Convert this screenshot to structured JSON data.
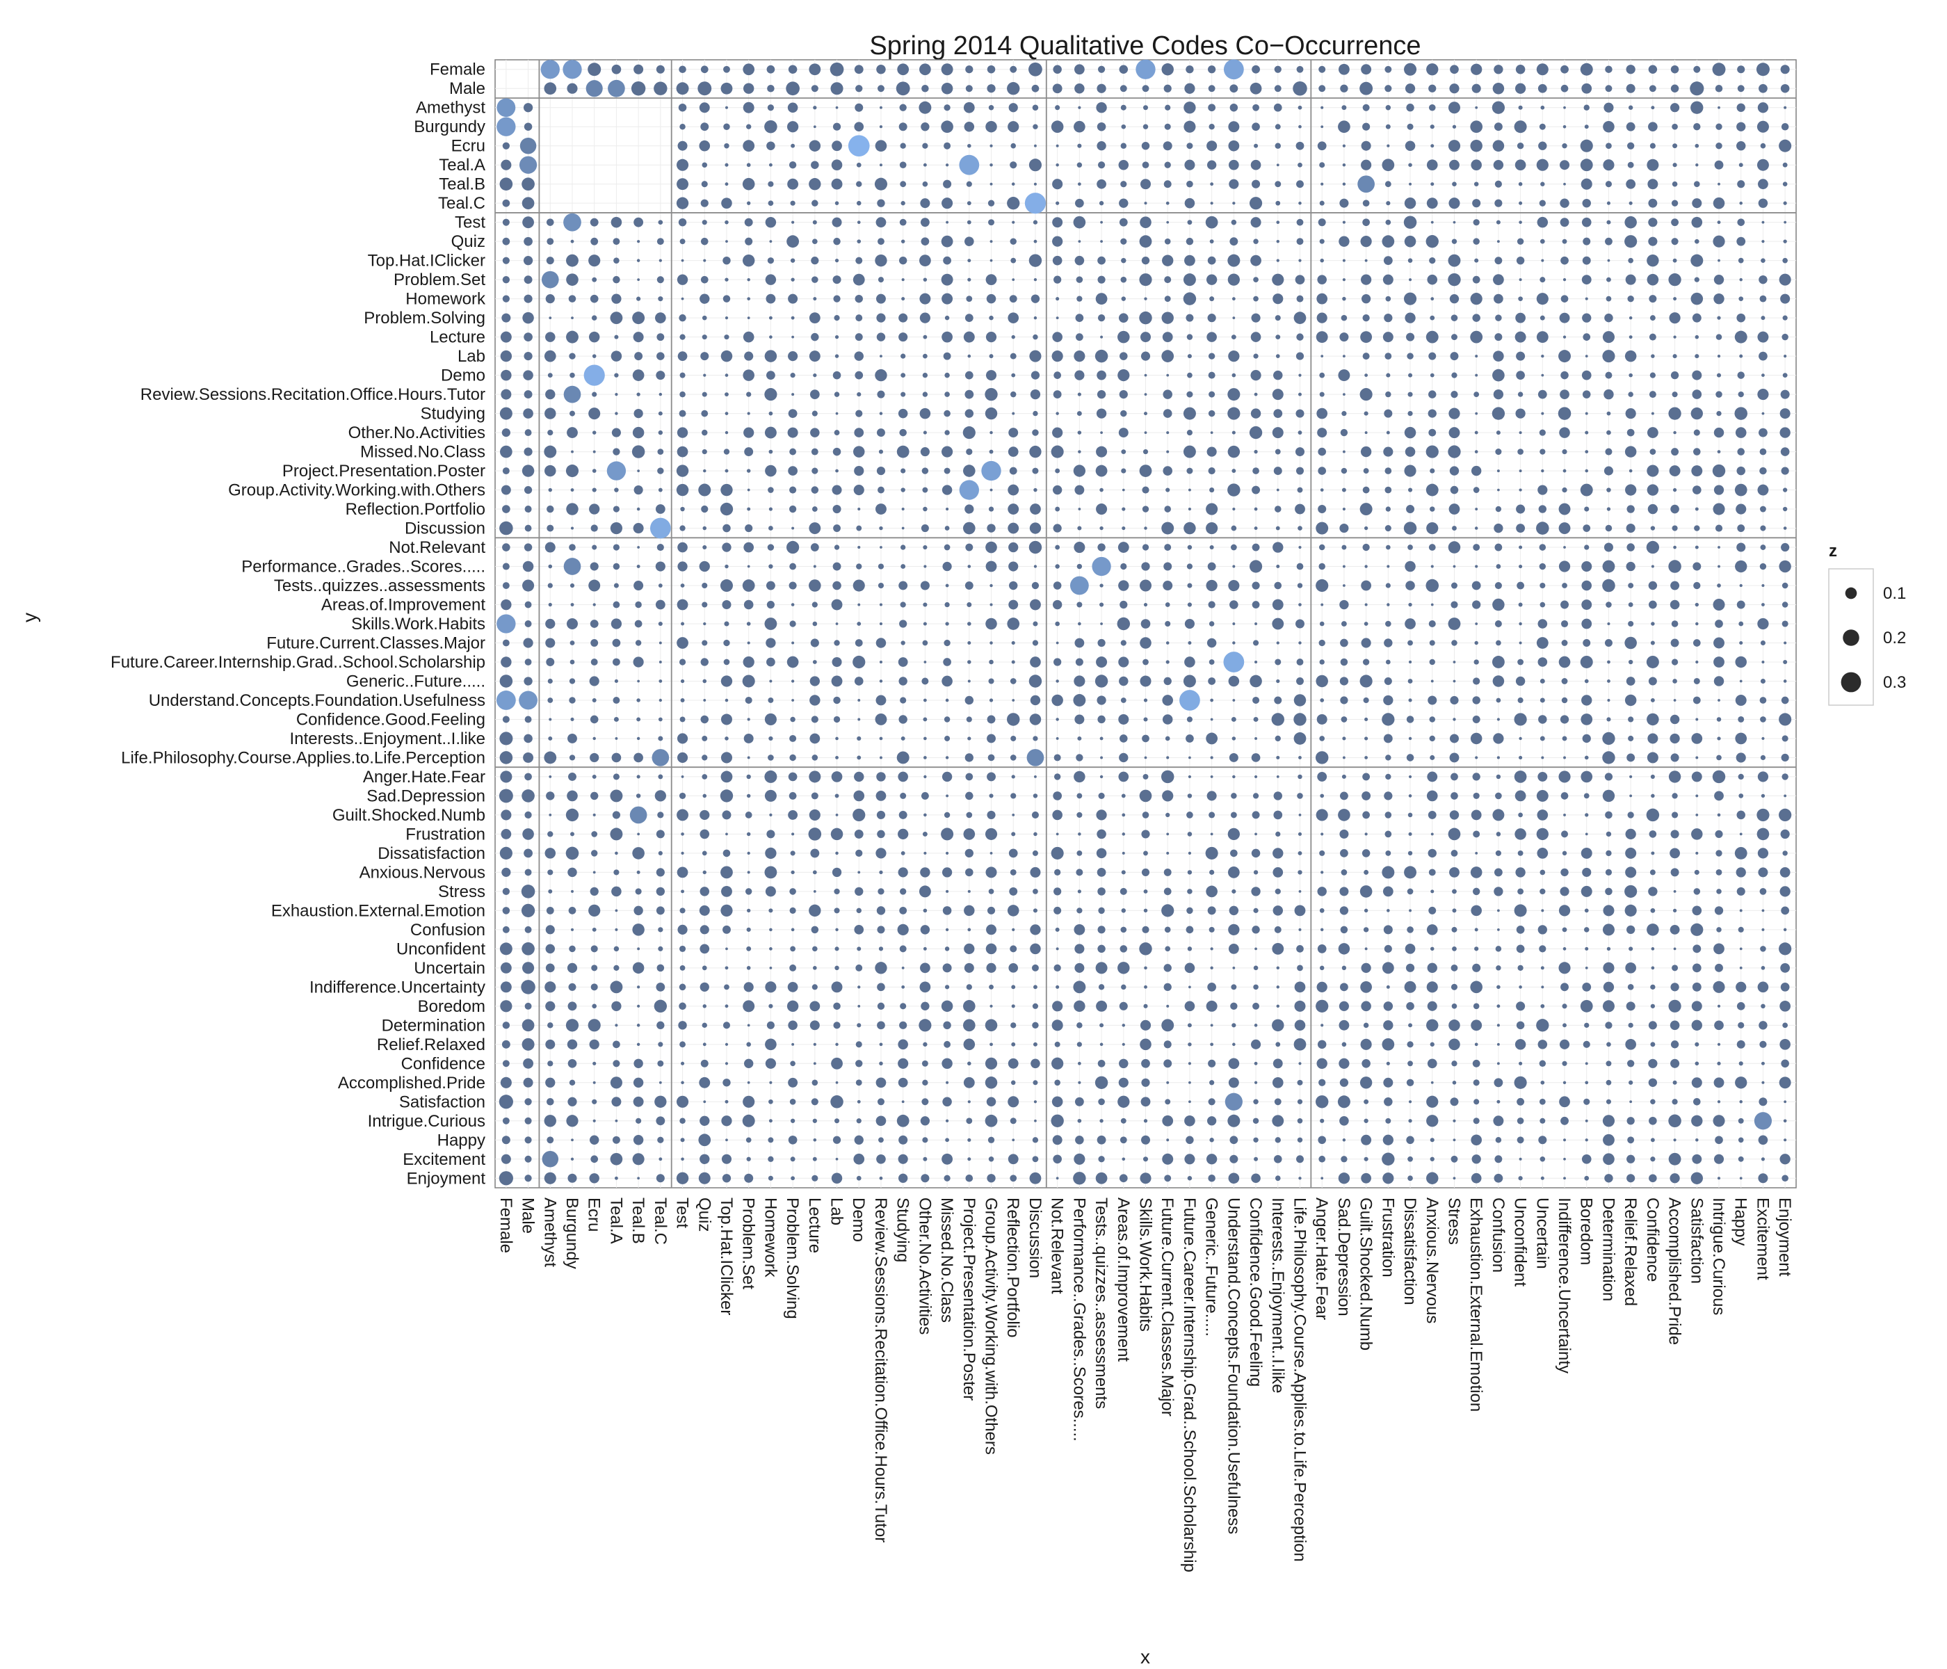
{
  "chart_data": {
    "type": "scatter",
    "subtype": "bubble-matrix",
    "title": "Spring 2014 Qualitative Codes Co−Occurrence",
    "xlabel": "x",
    "ylabel": "y",
    "codes": [
      "Female",
      "Male",
      "Amethyst",
      "Burgundy",
      "Ecru",
      "Teal.A",
      "Teal.B",
      "Teal.C",
      "Test",
      "Quiz",
      "Top.Hat.IClicker",
      "Problem.Set",
      "Homework",
      "Problem.Solving",
      "Lecture",
      "Lab",
      "Demo",
      "Review.Sessions.Recitation.Office.Hours.Tutor",
      "Studying",
      "Other.No.Activities",
      "Missed.No.Class",
      "Project.Presentation.Poster",
      "Group.Activity.Working.with.Others",
      "Reflection.Portfolio",
      "Discussion",
      "Not.Relevant",
      "Performance..Grades..Scores.....",
      "Tests..quizzes..assessments",
      "Areas.of.Improvement",
      "Skills.Work.Habits",
      "Future.Current.Classes.Major",
      "Future.Career.Internship.Grad..School.Scholarship",
      "Generic..Future.....",
      "Understand.Concepts.Foundation.Usefulness",
      "Confidence.Good.Feeling",
      "Interests..Enjoyment..I.like",
      "Life.Philosophy.Course.Applies.to.Life.Perception",
      "Anger.Hate.Fear",
      "Sad.Depression",
      "Guilt.Shocked.Numb",
      "Frustration",
      "Dissatisfaction",
      "Anxious.Nervous",
      "Stress",
      "Exhaustion.External.Emotion",
      "Confusion",
      "Unconfident",
      "Uncertain",
      "Indifference.Uncertainty",
      "Boredom",
      "Determination",
      "Relief.Relaxed",
      "Confidence",
      "Accomplished.Pride",
      "Satisfaction",
      "Intrigue.Curious",
      "Happy",
      "Excitement",
      "Enjoyment"
    ],
    "group_boundaries": [
      2,
      8,
      25,
      37
    ],
    "legend": {
      "title": "z",
      "position": "right",
      "entries": [
        {
          "label": "0.1",
          "value": 0.1
        },
        {
          "label": "0.2",
          "value": 0.2
        },
        {
          "label": "0.3",
          "value": 0.3
        }
      ]
    },
    "colors": {
      "low": "#5a6f91",
      "high": "#86b2ec"
    },
    "z_range": [
      0,
      0.37
    ],
    "grid": true,
    "highlighted_cells": [
      {
        "x": "Amethyst",
        "y": "Female",
        "z": 0.27
      },
      {
        "x": "Burgundy",
        "y": "Female",
        "z": 0.27
      },
      {
        "x": "Ecru",
        "y": "Male",
        "z": 0.21
      },
      {
        "x": "Teal.A",
        "y": "Male",
        "z": 0.22
      },
      {
        "x": "Female",
        "y": "Amethyst",
        "z": 0.26
      },
      {
        "x": "Female",
        "y": "Burgundy",
        "z": 0.27
      },
      {
        "x": "Male",
        "y": "Teal.A",
        "z": 0.23
      },
      {
        "x": "Male",
        "y": "Ecru",
        "z": 0.2
      },
      {
        "x": "Demo",
        "y": "Ecru",
        "z": 0.34
      },
      {
        "x": "Project.Presentation.Poster",
        "y": "Teal.A",
        "z": 0.3
      },
      {
        "x": "Guilt.Shocked.Numb",
        "y": "Teal.B",
        "z": 0.22
      },
      {
        "x": "Discussion",
        "y": "Teal.C",
        "z": 0.33
      },
      {
        "x": "Burgundy",
        "y": "Test",
        "z": 0.24
      },
      {
        "x": "Amethyst",
        "y": "Problem.Set",
        "z": 0.22
      },
      {
        "x": "Ecru",
        "y": "Demo",
        "z": 0.33
      },
      {
        "x": "Burgundy",
        "y": "Review.Sessions.Recitation.Office.Hours.Tutor",
        "z": 0.22
      },
      {
        "x": "Teal.A",
        "y": "Project.Presentation.Poster",
        "z": 0.27
      },
      {
        "x": "Group.Activity.Working.with.Others",
        "y": "Project.Presentation.Poster",
        "z": 0.29
      },
      {
        "x": "Project.Presentation.Poster",
        "y": "Group.Activity.Working.with.Others",
        "z": 0.29
      },
      {
        "x": "Teal.C",
        "y": "Discussion",
        "z": 0.32
      },
      {
        "x": "Burgundy",
        "y": "Performance..Grades..Scores.....",
        "z": 0.22
      },
      {
        "x": "Tests..quizzes..assessments",
        "y": "Performance..Grades..Scores.....",
        "z": 0.27
      },
      {
        "x": "Performance..Grades..Scores.....",
        "y": "Tests..quizzes..assessments",
        "z": 0.26
      },
      {
        "x": "Female",
        "y": "Skills.Work.Habits",
        "z": 0.27
      },
      {
        "x": "Understand.Concepts.Foundation.Usefulness",
        "y": "Future.Career.Internship.Grad..School.Scholarship",
        "z": 0.32
      },
      {
        "x": "Female",
        "y": "Understand.Concepts.Foundation.Usefulness",
        "z": 0.28
      },
      {
        "x": "Male",
        "y": "Understand.Concepts.Foundation.Usefulness",
        "z": 0.26
      },
      {
        "x": "Future.Career.Internship.Grad..School.Scholarship",
        "y": "Understand.Concepts.Foundation.Usefulness",
        "z": 0.32
      },
      {
        "x": "Teal.C",
        "y": "Life.Philosophy.Course.Applies.to.Life.Perception",
        "z": 0.22
      },
      {
        "x": "Discussion",
        "y": "Life.Philosophy.Course.Applies.to.Life.Perception",
        "z": 0.22
      },
      {
        "x": "Teal.B",
        "y": "Guilt.Shocked.Numb",
        "z": 0.22
      },
      {
        "x": "Understand.Concepts.Foundation.Usefulness",
        "y": "Satisfaction",
        "z": 0.23
      },
      {
        "x": "Excitement",
        "y": "Intrigue.Curious",
        "z": 0.23
      },
      {
        "x": "Amethyst",
        "y": "Excitement",
        "z": 0.2
      },
      {
        "x": "Understand.Concepts.Foundation.Usefulness",
        "y": "Female",
        "z": 0.3
      },
      {
        "x": "Skills.Work.Habits",
        "y": "Female",
        "z": 0.29
      }
    ]
  }
}
